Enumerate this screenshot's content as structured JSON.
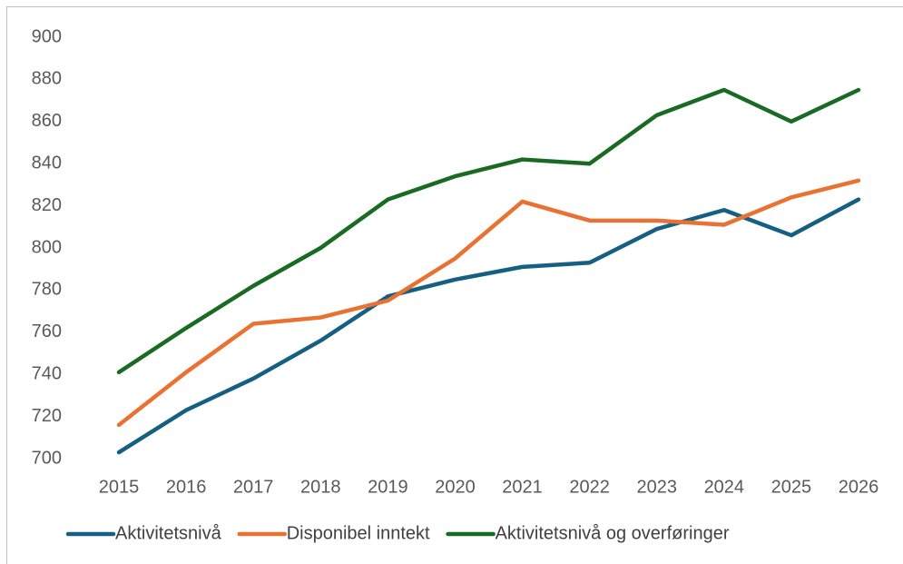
{
  "chart_data": {
    "type": "line",
    "categories": [
      "2015",
      "2016",
      "2017",
      "2018",
      "2019",
      "2020",
      "2021",
      "2022",
      "2023",
      "2024",
      "2025",
      "2026"
    ],
    "series": [
      {
        "name": "Aktivitetsnivå",
        "color": "#156082",
        "values": [
          703,
          723,
          738,
          756,
          777,
          785,
          791,
          793,
          809,
          818,
          806,
          823
        ]
      },
      {
        "name": "Disponibel inntekt",
        "color": "#e97132",
        "values": [
          716,
          741,
          764,
          767,
          775,
          795,
          822,
          813,
          813,
          811,
          824,
          832
        ]
      },
      {
        "name": "Aktivitetsnivå og overføringer",
        "color": "#196b24",
        "values": [
          741,
          762,
          782,
          800,
          823,
          834,
          842,
          840,
          863,
          875,
          860,
          875
        ]
      }
    ],
    "ylim": [
      700,
      900
    ],
    "yticks": [
      700,
      720,
      740,
      760,
      780,
      800,
      820,
      840,
      860,
      880,
      900
    ],
    "grid": false,
    "legend": "bottom"
  }
}
